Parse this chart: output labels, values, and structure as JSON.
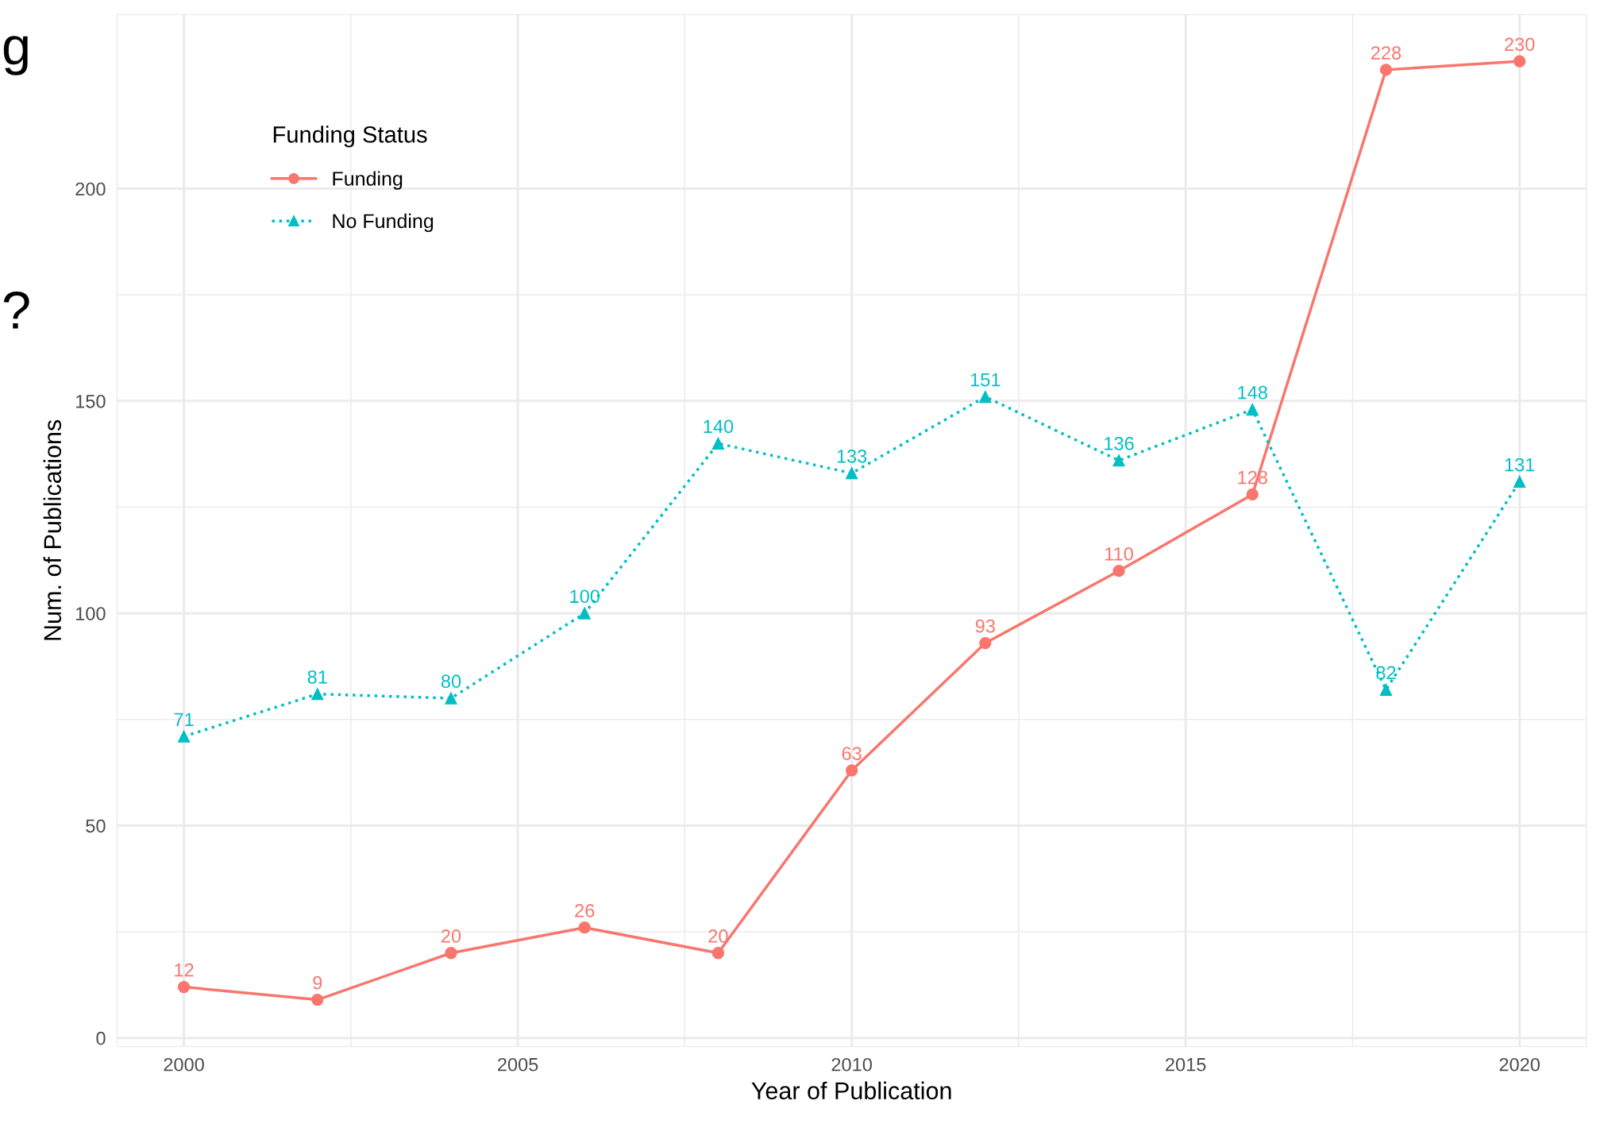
{
  "chart_data": {
    "type": "line",
    "xlabel": "Year of Publication",
    "ylabel": "Num. of Publications",
    "legend_title": "Funding Status",
    "x": [
      2000,
      2002,
      2004,
      2006,
      2008,
      2010,
      2012,
      2014,
      2016,
      2018,
      2020
    ],
    "series": [
      {
        "name": "Funding",
        "color": "#f8766d",
        "marker": "circle",
        "line_style": "solid",
        "values": [
          12,
          9,
          20,
          26,
          20,
          63,
          93,
          110,
          128,
          228,
          230
        ]
      },
      {
        "name": "No Funding",
        "color": "#00bfc4",
        "marker": "triangle",
        "line_style": "dotted",
        "values": [
          71,
          81,
          80,
          100,
          140,
          133,
          151,
          136,
          148,
          82,
          131
        ]
      }
    ],
    "xlim": [
      1999,
      2021
    ],
    "xticks": [
      2000,
      2005,
      2010,
      2015,
      2020
    ],
    "ylim": [
      -2,
      241
    ],
    "yticks": [
      0,
      50,
      100,
      150,
      200
    ],
    "grid": true,
    "legend": "top left",
    "data_labels": true,
    "annotations": [
      "g",
      "?"
    ]
  }
}
